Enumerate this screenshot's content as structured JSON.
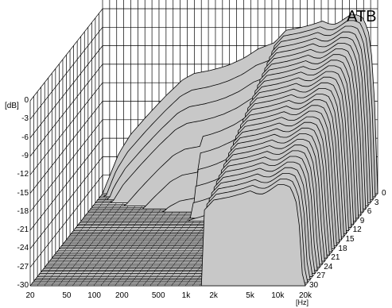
{
  "chart_data": {
    "type": "waterfall",
    "title": "ATB",
    "ylabel": "[dB]",
    "xlabel": "[Hz]",
    "x_scale": "log",
    "x_ticks": [
      "20",
      "50",
      "100",
      "200",
      "500",
      "1k",
      "2k",
      "5k",
      "10k",
      "20k"
    ],
    "x_tick_values": [
      20,
      50,
      100,
      200,
      500,
      1000,
      2000,
      5000,
      10000,
      20000
    ],
    "y_ticks": [
      "0",
      "-3",
      "-6",
      "-9",
      "-12",
      "-15",
      "-18",
      "-21",
      "-24",
      "-27",
      "-30"
    ],
    "y_tick_values": [
      0,
      -3,
      -6,
      -9,
      -12,
      -15,
      -18,
      -21,
      -24,
      -27,
      -30
    ],
    "ylim": [
      -30,
      0
    ],
    "z_ticks": [
      "0",
      "3",
      "6",
      "9",
      "12",
      "15",
      "18",
      "21",
      "24",
      "27",
      "30"
    ],
    "z_tick_values": [
      0,
      3,
      6,
      9,
      12,
      15,
      18,
      21,
      24,
      27,
      30
    ],
    "grid": true,
    "first_slice": {
      "z": 0,
      "freq_hz": [
        20,
        30,
        40,
        60,
        80,
        100,
        150,
        200,
        300,
        400,
        500,
        700,
        1000,
        1500,
        2000,
        3000,
        4000,
        5000,
        6000,
        7000,
        8000,
        10000,
        12000,
        14000,
        16000,
        18000,
        20000
      ],
      "level_db": [
        -30,
        -23.5,
        -20.5,
        -17.5,
        -15.5,
        -14,
        -11.5,
        -10.5,
        -10,
        -9.5,
        -9,
        -8,
        -6.5,
        -5.5,
        -3.5,
        -3,
        -2.5,
        -2,
        -2.5,
        -2.5,
        -2,
        -1,
        -1,
        -1.5,
        -4,
        -10,
        -30
      ]
    }
  }
}
